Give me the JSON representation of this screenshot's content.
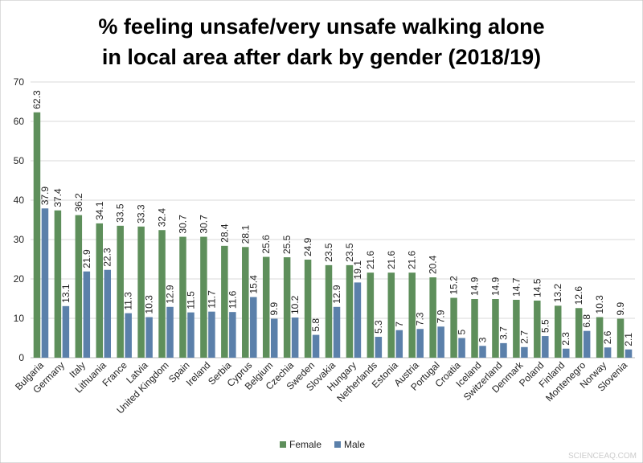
{
  "chart_data": {
    "type": "bar",
    "title": [
      "% feeling unsafe/very unsafe walking alone",
      "in local area after dark by gender (2018/19)"
    ],
    "categories": [
      "Bulgaria",
      "Germany",
      "Italy",
      "Lithuania",
      "France",
      "Latvia",
      "United Kingdom",
      "Spain",
      "Ireland",
      "Serbia",
      "Cyprus",
      "Belgium",
      "Czechia",
      "Sweden",
      "Slovakia",
      "Hungary",
      "Netherlands",
      "Estonia",
      "Austria",
      "Portugal",
      "Croatia",
      "Iceland",
      "Switzerland",
      "Denmark",
      "Poland",
      "Finland",
      "Montenegro",
      "Norway",
      "Slovenia"
    ],
    "series": [
      {
        "name": "Female",
        "color": "#5e8f5b",
        "values": [
          62.3,
          37.4,
          36.2,
          34.1,
          33.5,
          33.3,
          32.4,
          30.7,
          30.7,
          28.4,
          28.1,
          25.6,
          25.5,
          24.9,
          23.5,
          23.5,
          21.6,
          21.6,
          21.6,
          20.4,
          15.2,
          14.9,
          14.9,
          14.7,
          14.5,
          13.2,
          12.6,
          10.3,
          9.9
        ]
      },
      {
        "name": "Male",
        "color": "#5b80aa",
        "values": [
          37.9,
          13.1,
          21.9,
          22.3,
          11.3,
          10.3,
          12.9,
          11.5,
          11.7,
          11.6,
          15.4,
          9.9,
          10.2,
          5.8,
          12.9,
          19.1,
          5.3,
          7,
          7.3,
          7.9,
          5,
          3,
          3.7,
          2.7,
          5.5,
          2.3,
          6.8,
          2.6,
          2.1
        ]
      }
    ],
    "ylim": [
      0,
      70
    ],
    "yticks": [
      0,
      10,
      20,
      30,
      40,
      50,
      60,
      70
    ],
    "grid": true,
    "legend": "bottom",
    "watermark": "SCIENCEAQ.COM"
  }
}
